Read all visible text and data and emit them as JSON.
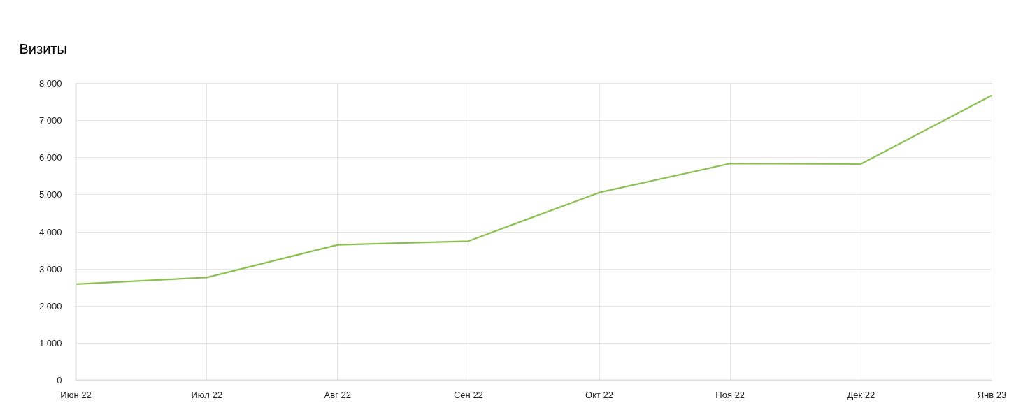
{
  "chart_data": {
    "type": "line",
    "title": "Визиты",
    "categories": [
      "Июн 22",
      "Июл 22",
      "Авг 22",
      "Сен 22",
      "Окт 22",
      "Ноя 22",
      "Дек 22",
      "Янв 23"
    ],
    "series": [
      {
        "color": "#8bc152",
        "values": [
          2590,
          2770,
          3650,
          3750,
          5060,
          5840,
          5830,
          7680
        ]
      }
    ],
    "ylim": [
      0,
      8000
    ],
    "yticks": [
      0,
      {
        "value": 1000,
        "label": "1 000"
      },
      {
        "value": 2000,
        "label": "2 000"
      },
      {
        "value": 3000,
        "label": "3 000"
      },
      {
        "value": 4000,
        "label": "4 000"
      },
      {
        "value": 5000,
        "label": "5 000"
      },
      {
        "value": 6000,
        "label": "6 000"
      },
      {
        "value": 7000,
        "label": "7 000"
      },
      {
        "value": 8000,
        "label": "8 000"
      }
    ],
    "grid": true
  }
}
